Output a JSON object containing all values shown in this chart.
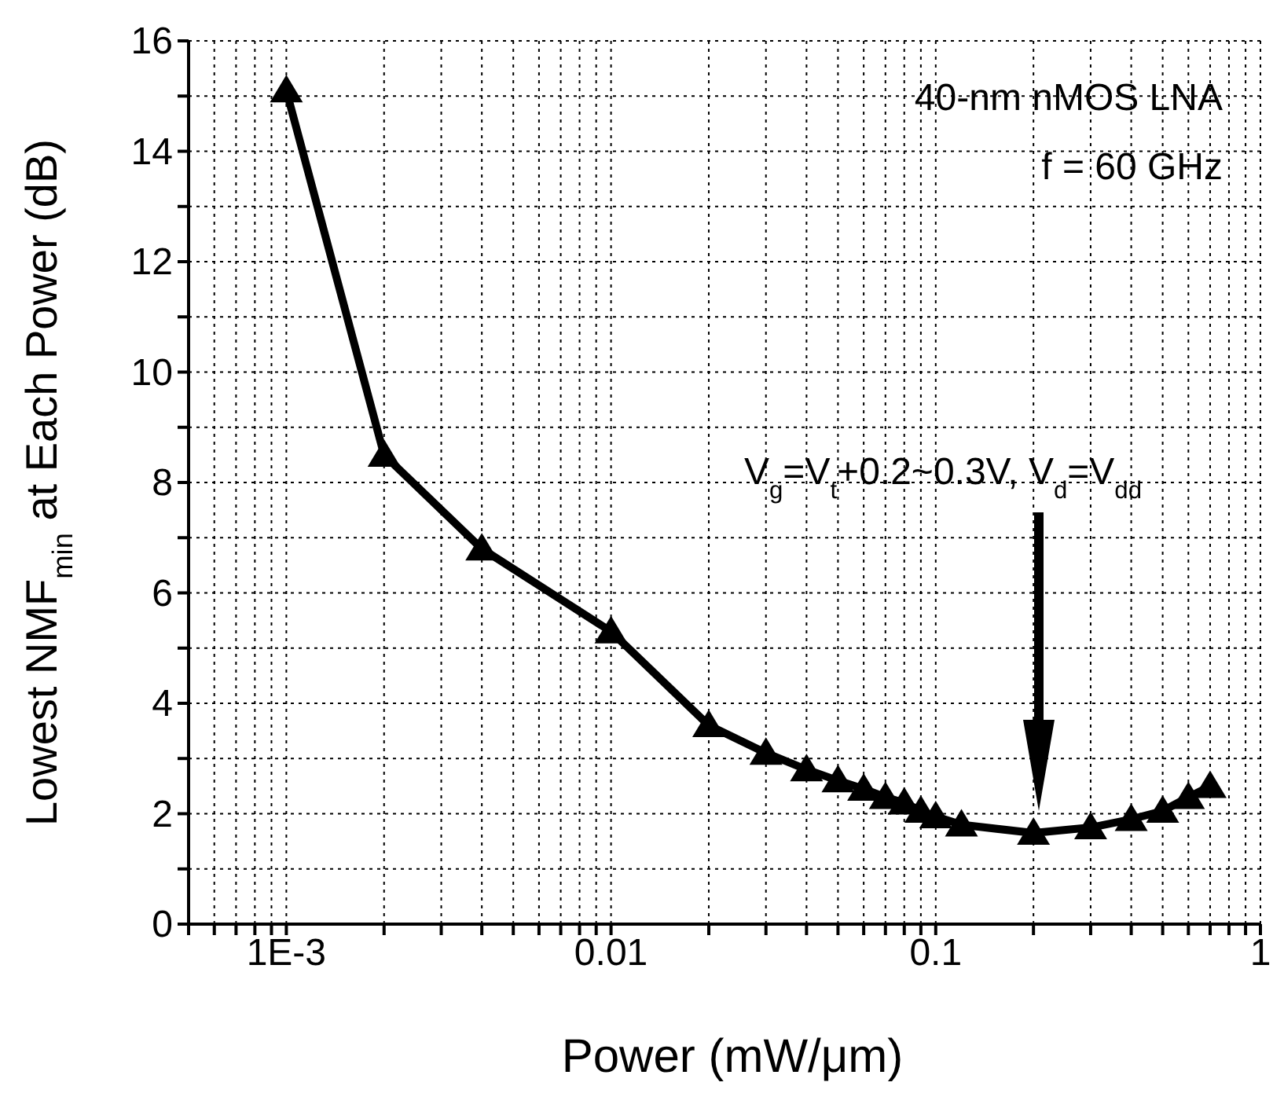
{
  "chart_data": {
    "type": "line",
    "xlabel": "Power (mW/μm)",
    "ylabel": "Lowest NMF$_{min}$ at Each Power (dB)",
    "x": [
      0.001,
      0.002,
      0.004,
      0.01,
      0.02,
      0.03,
      0.04,
      0.05,
      0.06,
      0.07,
      0.08,
      0.09,
      0.1,
      0.12,
      0.2,
      0.3,
      0.4,
      0.5,
      0.6,
      0.7
    ],
    "series": [
      {
        "color": "#000000",
        "values": [
          15.1,
          8.5,
          6.8,
          5.3,
          3.6,
          3.1,
          2.8,
          2.6,
          2.45,
          2.3,
          2.2,
          2.05,
          1.95,
          1.8,
          1.65,
          1.75,
          1.9,
          2.05,
          2.3,
          2.5
        ]
      }
    ],
    "log": "x",
    "xlim": [
      0.0005,
      1
    ],
    "ylim": [
      0,
      16
    ],
    "xticks": [
      {
        "value": 0.0005,
        "label": null
      },
      {
        "value": 0.0006,
        "label": null
      },
      {
        "value": 0.0007,
        "label": null
      },
      {
        "value": 0.0008,
        "label": null
      },
      {
        "value": 0.0009,
        "label": null
      },
      {
        "value": 0.001,
        "label": "1E-3"
      },
      {
        "value": 0.002,
        "label": null
      },
      {
        "value": 0.003,
        "label": null
      },
      {
        "value": 0.004,
        "label": null
      },
      {
        "value": 0.005,
        "label": null
      },
      {
        "value": 0.006,
        "label": null
      },
      {
        "value": 0.007,
        "label": null
      },
      {
        "value": 0.008,
        "label": null
      },
      {
        "value": 0.009,
        "label": null
      },
      {
        "value": 0.01,
        "label": "0.01"
      },
      {
        "value": 0.02,
        "label": null
      },
      {
        "value": 0.03,
        "label": null
      },
      {
        "value": 0.04,
        "label": null
      },
      {
        "value": 0.05,
        "label": null
      },
      {
        "value": 0.06,
        "label": null
      },
      {
        "value": 0.07,
        "label": null
      },
      {
        "value": 0.08,
        "label": null
      },
      {
        "value": 0.09,
        "label": null
      },
      {
        "value": 0.1,
        "label": "0.1"
      },
      {
        "value": 0.2,
        "label": null
      },
      {
        "value": 0.3,
        "label": null
      },
      {
        "value": 0.4,
        "label": null
      },
      {
        "value": 0.5,
        "label": null
      },
      {
        "value": 0.6,
        "label": null
      },
      {
        "value": 0.7,
        "label": null
      },
      {
        "value": 0.8,
        "label": null
      },
      {
        "value": 0.9,
        "label": null
      },
      1
    ],
    "yticks": [
      0,
      {
        "value": 1,
        "label": null
      },
      2,
      {
        "value": 3,
        "label": null
      },
      4,
      {
        "value": 5,
        "label": null
      },
      6,
      {
        "value": 7,
        "label": null
      },
      8,
      {
        "value": 9,
        "label": null
      },
      10,
      {
        "value": 11,
        "label": null
      },
      12,
      {
        "value": 13,
        "label": null
      },
      14,
      {
        "value": 15,
        "label": null
      },
      16
    ],
    "grid": true,
    "marker": "triangle",
    "line_style": "solid",
    "annotations": [
      "40-nm nMOS LNA",
      "f = 60 GHz",
      "V$_{g}$=V$_{t}$+0.2~0.3V, V$_{d}$=V$_{dd}$"
    ]
  }
}
